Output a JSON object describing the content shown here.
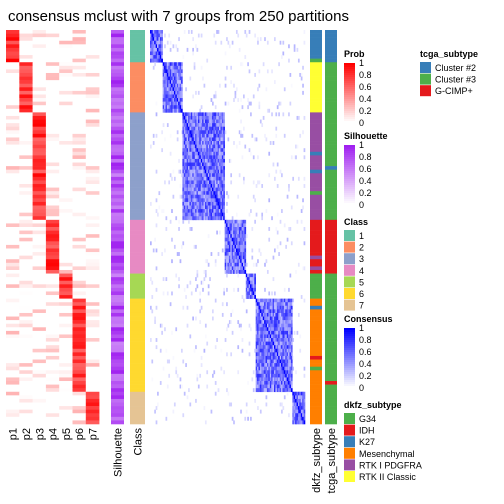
{
  "title": "consensus mclust with 7 groups from 250 partitions",
  "chart_data": {
    "type": "heatmap",
    "title": "consensus mclust with 7 groups from 250 partitions",
    "n_groups": 7,
    "prob_columns": [
      "p1",
      "p2",
      "p3",
      "p4",
      "p5",
      "p6",
      "p7"
    ],
    "column_labels": [
      "p1",
      "p2",
      "p3",
      "p4",
      "p5",
      "p6",
      "p7",
      "Silhouette",
      "Class",
      "dkfz_subtype",
      "tcga_subtype"
    ],
    "class_segments": [
      {
        "class": "1",
        "samples": 9
      },
      {
        "class": "2",
        "samples": 14
      },
      {
        "class": "3",
        "samples": 30
      },
      {
        "class": "4",
        "samples": 15
      },
      {
        "class": "5",
        "samples": 7
      },
      {
        "class": "6",
        "samples": 26
      },
      {
        "class": "7",
        "samples": 9
      }
    ],
    "prob_peak_column": [
      1,
      2,
      3,
      4,
      5,
      6,
      7
    ],
    "legends": [
      {
        "title": "Prob",
        "labels": [
          "1",
          "0.8",
          "0.6",
          "0.4",
          "0.2",
          "0"
        ],
        "gradient": [
          "#FF0000",
          "#FFFFFF"
        ]
      },
      {
        "title": "Silhouette",
        "labels": [
          "1",
          "0.8",
          "0.6",
          "0.4",
          "0.2",
          "0"
        ],
        "gradient": [
          "#A020F0",
          "#FFFFFF"
        ]
      },
      {
        "title": "Class",
        "entries": [
          {
            "label": "1",
            "color": "#66C2A5"
          },
          {
            "label": "2",
            "color": "#FC8D62"
          },
          {
            "label": "3",
            "color": "#8DA0CB"
          },
          {
            "label": "4",
            "color": "#E78AC3"
          },
          {
            "label": "5",
            "color": "#A6D854"
          },
          {
            "label": "6",
            "color": "#FFD92F"
          },
          {
            "label": "7",
            "color": "#E5C494"
          }
        ]
      },
      {
        "title": "Consensus",
        "labels": [
          "1",
          "0.8",
          "0.6",
          "0.4",
          "0.2",
          "0"
        ],
        "gradient": [
          "#0000FF",
          "#FFFFFF"
        ]
      },
      {
        "title": "dkfz_subtype",
        "entries": [
          {
            "label": "G34",
            "color": "#4DAF4A"
          },
          {
            "label": "IDH",
            "color": "#E41A1C"
          },
          {
            "label": "K27",
            "color": "#377EB8"
          },
          {
            "label": "Mesenchymal",
            "color": "#FF7F00"
          },
          {
            "label": "RTK I PDGFRA",
            "color": "#984EA3"
          },
          {
            "label": "RTK II Classic",
            "color": "#FFFF33"
          }
        ]
      },
      {
        "title": "tcga_subtype",
        "entries": [
          {
            "label": "Cluster #2",
            "color": "#377EB8"
          },
          {
            "label": "Cluster #3",
            "color": "#4DAF4A"
          },
          {
            "label": "G-CIMP+",
            "color": "#E41A1C"
          }
        ]
      }
    ]
  }
}
